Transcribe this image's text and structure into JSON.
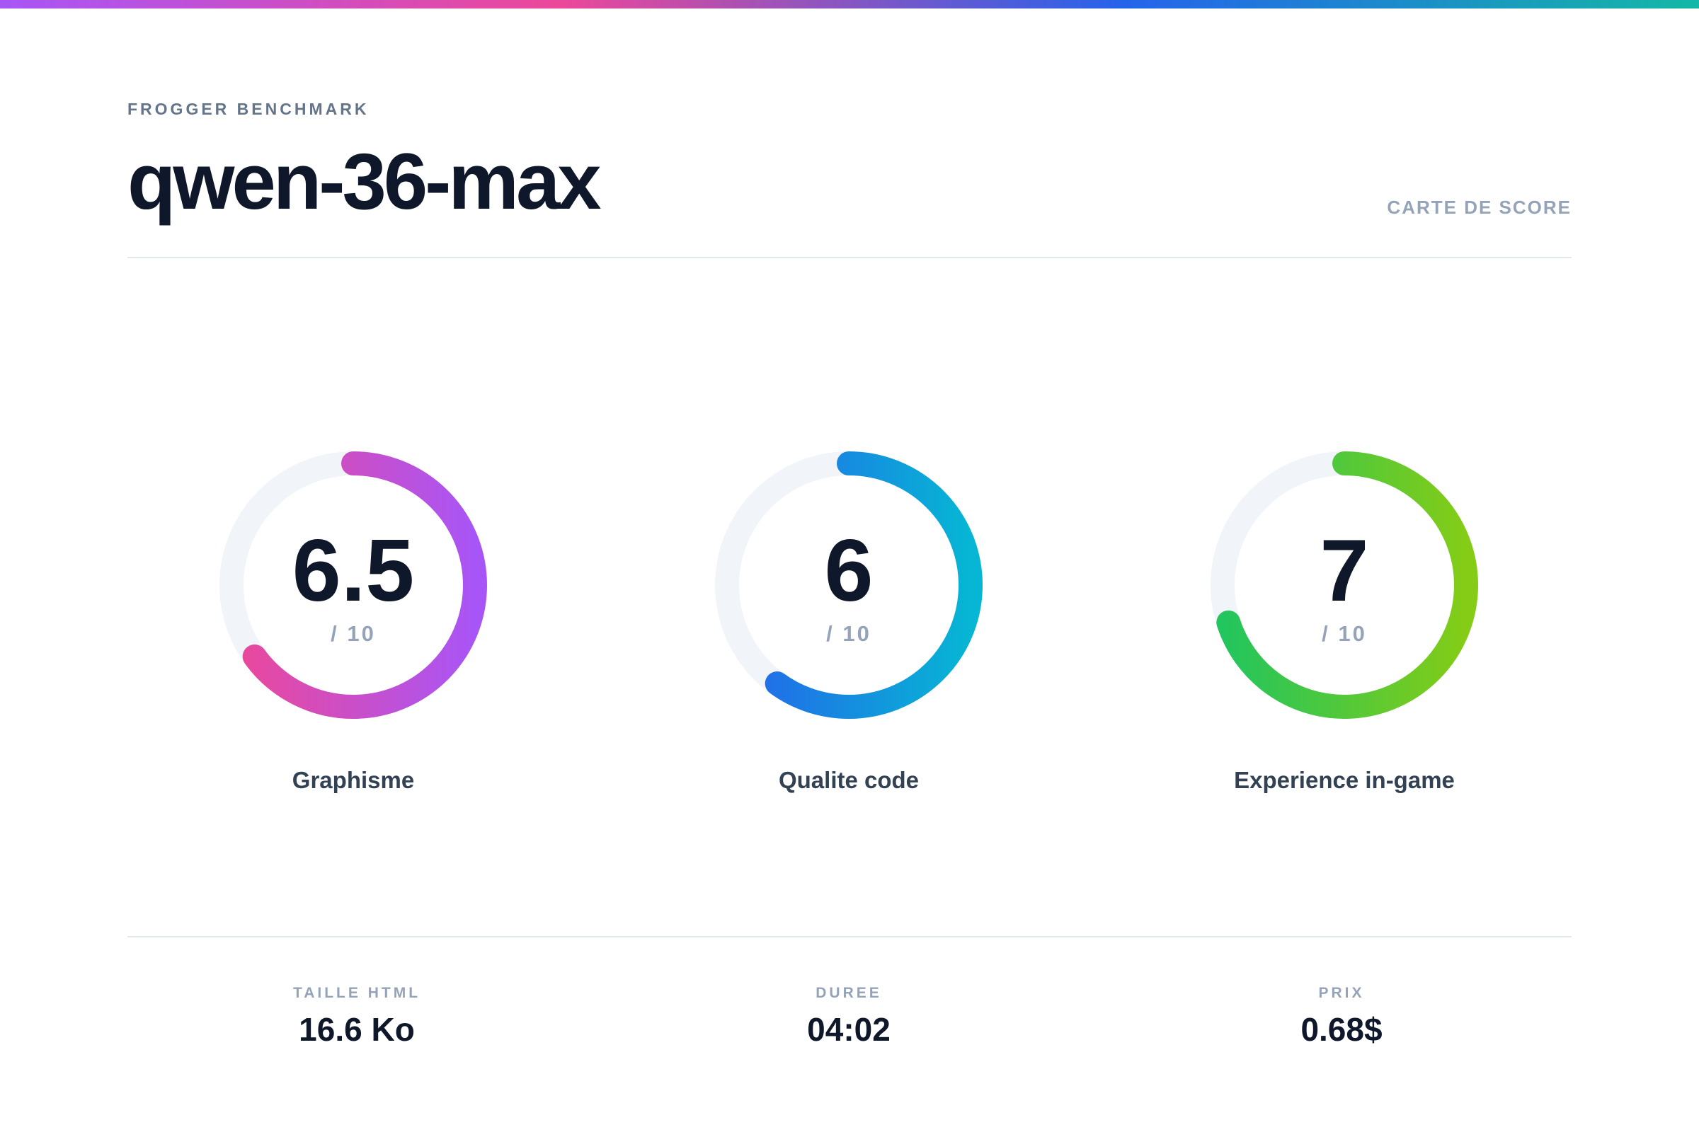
{
  "header": {
    "eyebrow": "FROGGER BENCHMARK",
    "title": "qwen-36-max",
    "tag": "CARTE DE SCORE"
  },
  "scores": [
    {
      "label": "Graphisme",
      "value": 6.5,
      "scale": {
        "value": 10,
        "label": "/ 10"
      },
      "colors": [
        "#ec4899",
        "#a855f7"
      ]
    },
    {
      "label": "Qualite code",
      "value": 6,
      "scale": {
        "value": 10,
        "label": "/ 10"
      },
      "colors": [
        "#2563eb",
        "#06b6d4"
      ]
    },
    {
      "label": "Experience in-game",
      "value": 7,
      "scale": {
        "value": 10,
        "label": "/ 10"
      },
      "colors": [
        "#22c55e",
        "#84cc16"
      ]
    }
  ],
  "stats": [
    {
      "label": "TAILLE HTML",
      "value": "16.6 Ko"
    },
    {
      "label": "DUREE",
      "value": "04:02"
    },
    {
      "label": "PRIX",
      "value": "0.68$"
    }
  ]
}
